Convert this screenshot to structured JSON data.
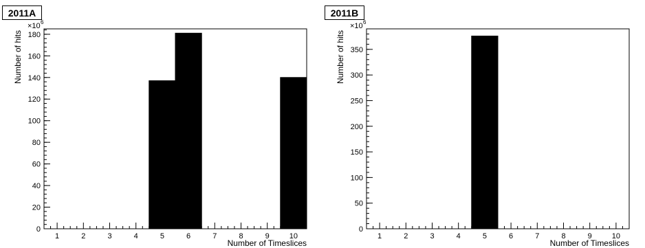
{
  "chart_data": [
    {
      "type": "bar",
      "title": "2011A",
      "xlabel": "Number of Timeslices",
      "ylabel": "Number of hits",
      "y_multiplier": "×10",
      "y_multiplier_exp": "6",
      "categories": [
        "1",
        "2",
        "3",
        "4",
        "5",
        "6",
        "7",
        "8",
        "9",
        "10"
      ],
      "values": [
        0,
        0,
        0,
        0,
        137,
        181,
        0,
        0,
        0,
        140
      ],
      "xlim": [
        0.5,
        10.5
      ],
      "ylim": [
        0,
        185
      ],
      "y_major_ticks": [
        0,
        20,
        40,
        60,
        80,
        100,
        120,
        140,
        160,
        180
      ],
      "y_minor_step": 4,
      "grid": false,
      "bar_color": "#000000"
    },
    {
      "type": "bar",
      "title": "2011B",
      "xlabel": "Number of Timeslices",
      "ylabel": "Number of hits",
      "y_multiplier": "×10",
      "y_multiplier_exp": "6",
      "categories": [
        "1",
        "2",
        "3",
        "4",
        "5",
        "6",
        "7",
        "8",
        "9",
        "10"
      ],
      "values": [
        0,
        0,
        0,
        0,
        376,
        0,
        0,
        0,
        0,
        0
      ],
      "xlim": [
        0.5,
        10.5
      ],
      "ylim": [
        0,
        390
      ],
      "y_major_ticks": [
        0,
        50,
        100,
        150,
        200,
        250,
        300,
        350
      ],
      "y_minor_step": 10,
      "grid": false,
      "bar_color": "#000000"
    }
  ]
}
